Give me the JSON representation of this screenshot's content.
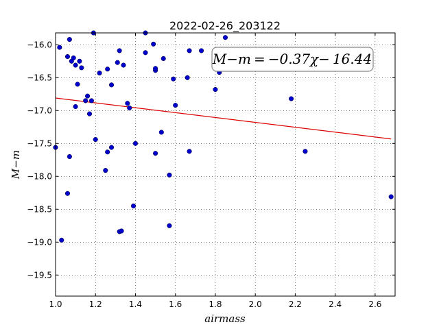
{
  "chart_data": {
    "type": "scatter",
    "title": "2022-02-26_203122",
    "xlabel": "airmass",
    "ylabel": "M−m",
    "xlim": [
      1.0,
      2.7
    ],
    "ylim": [
      -15.82,
      -19.82
    ],
    "y_inverted": true,
    "x_ticks": [
      1.0,
      1.2,
      1.4,
      1.6,
      1.8,
      2.0,
      2.2,
      2.4,
      2.6
    ],
    "x_tick_labels": [
      "1.0",
      "1.2",
      "1.4",
      "1.6",
      "1.8",
      "2.0",
      "2.2",
      "2.4",
      "2.6"
    ],
    "y_ticks": [
      -16.0,
      -16.5,
      -17.0,
      -17.5,
      -18.0,
      -18.5,
      -19.0,
      -19.5
    ],
    "y_tick_labels": [
      "−16.0",
      "−16.5",
      "−17.0",
      "−17.5",
      "−18.0",
      "−18.5",
      "−19.0",
      "−19.5"
    ],
    "grid": true,
    "marker_color": "#0000cc",
    "fit_color": "#dd0000",
    "fit": {
      "slope": -0.37,
      "intercept": -16.44,
      "x_range": [
        1.0,
        2.68
      ]
    },
    "annotation": "M−m = −0.37χ− 16.44",
    "points": [
      [
        1.0,
        -17.56
      ],
      [
        1.02,
        -16.04
      ],
      [
        1.03,
        -18.97
      ],
      [
        1.06,
        -16.18
      ],
      [
        1.06,
        -18.26
      ],
      [
        1.07,
        -15.92
      ],
      [
        1.07,
        -17.7
      ],
      [
        1.08,
        -16.25
      ],
      [
        1.09,
        -16.2
      ],
      [
        1.1,
        -16.31
      ],
      [
        1.1,
        -16.94
      ],
      [
        1.11,
        -16.6
      ],
      [
        1.12,
        -16.25
      ],
      [
        1.13,
        -16.35
      ],
      [
        1.15,
        -16.85
      ],
      [
        1.16,
        -16.78
      ],
      [
        1.17,
        -17.05
      ],
      [
        1.18,
        -16.85
      ],
      [
        1.19,
        -15.82
      ],
      [
        1.2,
        -17.44
      ],
      [
        1.22,
        -16.43
      ],
      [
        1.25,
        -17.91
      ],
      [
        1.26,
        -16.37
      ],
      [
        1.26,
        -17.63
      ],
      [
        1.28,
        -16.61
      ],
      [
        1.28,
        -17.56
      ],
      [
        1.31,
        -16.27
      ],
      [
        1.32,
        -16.09
      ],
      [
        1.32,
        -18.84
      ],
      [
        1.33,
        -18.83
      ],
      [
        1.34,
        -16.31
      ],
      [
        1.36,
        -16.89
      ],
      [
        1.37,
        -16.96
      ],
      [
        1.39,
        -18.45
      ],
      [
        1.4,
        -17.5
      ],
      [
        1.45,
        -16.12
      ],
      [
        1.45,
        -15.82
      ],
      [
        1.49,
        -15.99
      ],
      [
        1.5,
        -16.39
      ],
      [
        1.5,
        -16.36
      ],
      [
        1.5,
        -17.65
      ],
      [
        1.53,
        -17.33
      ],
      [
        1.54,
        -16.21
      ],
      [
        1.57,
        -17.98
      ],
      [
        1.57,
        -18.75
      ],
      [
        1.59,
        -16.52
      ],
      [
        1.6,
        -16.92
      ],
      [
        1.66,
        -16.5
      ],
      [
        1.67,
        -16.09
      ],
      [
        1.67,
        -17.62
      ],
      [
        1.73,
        -16.09
      ],
      [
        1.8,
        -16.68
      ],
      [
        1.82,
        -16.42
      ],
      [
        1.85,
        -15.89
      ],
      [
        2.18,
        -16.82
      ],
      [
        2.25,
        -17.62
      ],
      [
        2.68,
        -18.31
      ]
    ]
  }
}
